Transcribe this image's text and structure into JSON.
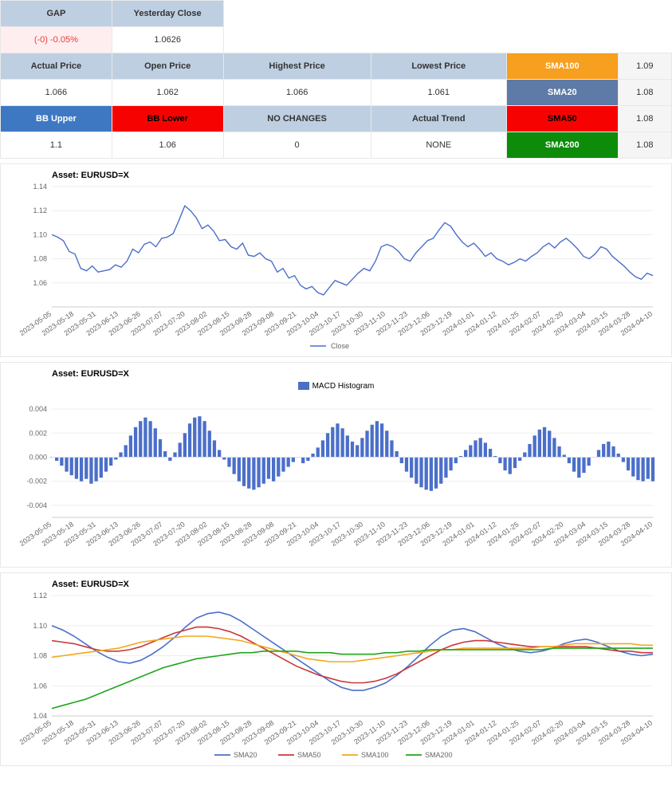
{
  "tables": {
    "row1_headers": [
      "GAP",
      "Yesterday Close"
    ],
    "row1_values": [
      "(-0) -0.05%",
      "1.0626"
    ],
    "row2_headers": [
      "Actual Price",
      "Open Price",
      "Highest Price",
      "Lowest Price",
      "SMA100",
      "1.09"
    ],
    "row2_values": [
      "1.066",
      "1.062",
      "1.066",
      "1.061",
      "SMA20",
      "1.08"
    ],
    "row3_headers": [
      "BB Upper",
      "BB Lower",
      "NO CHANGES",
      "Actual Trend",
      "SMA50",
      "1.08"
    ],
    "row3_values": [
      "1.1",
      "1.06",
      "0",
      "NONE",
      "SMA200",
      "1.08"
    ]
  },
  "colors": {
    "header_blue": "#becfe2",
    "orange": "#f79f1e",
    "blue2": "#5e7aa7",
    "red": "#f60301",
    "green": "#0d8c0a",
    "blue_strong": "#3e78c2",
    "pink_bg": "#ffeef0",
    "pink_text": "#ea3a3a",
    "close_line": "#4b6fc9",
    "macd_bar": "#4b6fc9",
    "sma20": "#4b6fc9",
    "sma50": "#ca3838",
    "sma100": "#f2a81e",
    "sma200": "#21a41c",
    "grid": "#eeeeee",
    "axis": "#cccccc",
    "text": "#666666"
  },
  "chart_meta": {
    "asset_title": "Asset: EURUSD=X",
    "x_dates": [
      "2023-05-05",
      "2023-05-18",
      "2023-05-31",
      "2023-06-13",
      "2023-06-26",
      "2023-07-07",
      "2023-07-20",
      "2023-08-02",
      "2023-08-15",
      "2023-08-28",
      "2023-09-08",
      "2023-09-21",
      "2023-10-04",
      "2023-10-17",
      "2023-10-30",
      "2023-11-10",
      "2023-11-23",
      "2023-12-06",
      "2023-12-19",
      "2024-01-01",
      "2024-01-12",
      "2024-01-25",
      "2024-02-07",
      "2024-02-20",
      "2024-03-04",
      "2024-03-15",
      "2024-03-28",
      "2024-04-10"
    ],
    "close_chart": {
      "legend": "Close",
      "ylim": [
        1.04,
        1.14
      ],
      "yticks": [
        1.06,
        1.08,
        1.1,
        1.12,
        1.14
      ],
      "series": [
        1.1,
        1.098,
        1.095,
        1.086,
        1.084,
        1.072,
        1.07,
        1.074,
        1.069,
        1.07,
        1.071,
        1.075,
        1.073,
        1.078,
        1.088,
        1.085,
        1.092,
        1.094,
        1.09,
        1.097,
        1.098,
        1.101,
        1.112,
        1.124,
        1.12,
        1.114,
        1.105,
        1.108,
        1.103,
        1.095,
        1.096,
        1.09,
        1.088,
        1.093,
        1.083,
        1.082,
        1.085,
        1.08,
        1.078,
        1.069,
        1.072,
        1.064,
        1.066,
        1.058,
        1.055,
        1.057,
        1.052,
        1.05,
        1.056,
        1.062,
        1.06,
        1.058,
        1.063,
        1.068,
        1.072,
        1.07,
        1.078,
        1.09,
        1.092,
        1.09,
        1.086,
        1.08,
        1.078,
        1.085,
        1.09,
        1.095,
        1.097,
        1.104,
        1.11,
        1.107,
        1.1,
        1.094,
        1.09,
        1.093,
        1.088,
        1.082,
        1.085,
        1.08,
        1.078,
        1.075,
        1.077,
        1.08,
        1.078,
        1.082,
        1.085,
        1.09,
        1.093,
        1.089,
        1.094,
        1.097,
        1.093,
        1.088,
        1.082,
        1.08,
        1.084,
        1.09,
        1.088,
        1.082,
        1.078,
        1.074,
        1.069,
        1.065,
        1.063,
        1.068,
        1.066
      ]
    },
    "macd_chart": {
      "legend": "MACD Histogram",
      "ylim": [
        -0.005,
        0.005
      ],
      "yticks": [
        -0.004,
        -0.002,
        0.0,
        0.002,
        0.004
      ],
      "bars": [
        0.0,
        -0.0003,
        -0.0007,
        -0.0012,
        -0.0015,
        -0.0018,
        -0.002,
        -0.0018,
        -0.0022,
        -0.002,
        -0.0017,
        -0.0012,
        -0.0007,
        -0.0002,
        0.0004,
        0.001,
        0.0018,
        0.0025,
        0.003,
        0.0033,
        0.003,
        0.0024,
        0.0015,
        0.0005,
        -0.0003,
        0.0004,
        0.0012,
        0.002,
        0.0028,
        0.0033,
        0.0034,
        0.003,
        0.0022,
        0.0014,
        0.0006,
        -0.0002,
        -0.0008,
        -0.0014,
        -0.002,
        -0.0024,
        -0.0026,
        -0.0027,
        -0.0025,
        -0.0022,
        -0.0018,
        -0.002,
        -0.0016,
        -0.0012,
        -0.0008,
        -0.0004,
        0.0,
        -0.0005,
        -0.0003,
        0.0003,
        0.0008,
        0.0014,
        0.002,
        0.0025,
        0.0028,
        0.0024,
        0.0018,
        0.0013,
        0.001,
        0.0016,
        0.0022,
        0.0027,
        0.003,
        0.0028,
        0.0022,
        0.0014,
        0.0005,
        -0.0005,
        -0.0012,
        -0.0017,
        -0.0022,
        -0.0025,
        -0.0027,
        -0.0028,
        -0.0026,
        -0.0022,
        -0.0017,
        -0.0011,
        -0.0005,
        0.0001,
        0.0006,
        0.001,
        0.0014,
        0.0016,
        0.0012,
        0.0007,
        0.0001,
        -0.0005,
        -0.0011,
        -0.0014,
        -0.0009,
        -0.0003,
        0.0004,
        0.0011,
        0.0018,
        0.0023,
        0.0025,
        0.0022,
        0.0016,
        0.0009,
        0.0002,
        -0.0005,
        -0.0012,
        -0.0017,
        -0.0013,
        -0.0007,
        0.0,
        0.0006,
        0.0011,
        0.0013,
        0.0009,
        0.0003,
        -0.0004,
        -0.0011,
        -0.0016,
        -0.0019,
        -0.002,
        -0.0018,
        -0.002
      ]
    },
    "sma_chart": {
      "legend": [
        "SMA20",
        "SMA50",
        "SMA100",
        "SMA200"
      ],
      "ylim": [
        1.04,
        1.12
      ],
      "yticks": [
        1.04,
        1.06,
        1.08,
        1.1,
        1.12
      ],
      "sma20": [
        1.1,
        1.097,
        1.093,
        1.088,
        1.083,
        1.079,
        1.076,
        1.075,
        1.077,
        1.081,
        1.086,
        1.092,
        1.099,
        1.105,
        1.108,
        1.109,
        1.107,
        1.103,
        1.098,
        1.093,
        1.088,
        1.083,
        1.078,
        1.073,
        1.068,
        1.063,
        1.059,
        1.057,
        1.057,
        1.059,
        1.062,
        1.067,
        1.073,
        1.08,
        1.087,
        1.093,
        1.097,
        1.098,
        1.096,
        1.092,
        1.088,
        1.085,
        1.083,
        1.082,
        1.083,
        1.085,
        1.088,
        1.09,
        1.091,
        1.089,
        1.086,
        1.083,
        1.081,
        1.08,
        1.081
      ],
      "sma50": [
        1.09,
        1.089,
        1.088,
        1.086,
        1.084,
        1.083,
        1.083,
        1.084,
        1.086,
        1.089,
        1.092,
        1.095,
        1.097,
        1.099,
        1.099,
        1.098,
        1.096,
        1.093,
        1.089,
        1.085,
        1.081,
        1.077,
        1.073,
        1.07,
        1.067,
        1.065,
        1.063,
        1.062,
        1.062,
        1.063,
        1.065,
        1.068,
        1.072,
        1.076,
        1.08,
        1.084,
        1.087,
        1.089,
        1.09,
        1.09,
        1.089,
        1.088,
        1.087,
        1.086,
        1.086,
        1.086,
        1.086,
        1.086,
        1.086,
        1.085,
        1.084,
        1.083,
        1.083,
        1.082,
        1.082
      ],
      "sma100": [
        1.079,
        1.08,
        1.081,
        1.082,
        1.083,
        1.084,
        1.085,
        1.087,
        1.089,
        1.09,
        1.091,
        1.092,
        1.093,
        1.093,
        1.093,
        1.092,
        1.091,
        1.09,
        1.088,
        1.086,
        1.084,
        1.082,
        1.08,
        1.078,
        1.077,
        1.076,
        1.076,
        1.076,
        1.077,
        1.078,
        1.079,
        1.08,
        1.081,
        1.082,
        1.083,
        1.084,
        1.084,
        1.085,
        1.085,
        1.085,
        1.085,
        1.085,
        1.085,
        1.085,
        1.086,
        1.086,
        1.087,
        1.088,
        1.088,
        1.088,
        1.088,
        1.088,
        1.088,
        1.087,
        1.087
      ],
      "sma200": [
        1.045,
        1.047,
        1.049,
        1.051,
        1.054,
        1.057,
        1.06,
        1.063,
        1.066,
        1.069,
        1.072,
        1.074,
        1.076,
        1.078,
        1.079,
        1.08,
        1.081,
        1.082,
        1.082,
        1.083,
        1.083,
        1.083,
        1.083,
        1.082,
        1.082,
        1.082,
        1.081,
        1.081,
        1.081,
        1.081,
        1.082,
        1.082,
        1.083,
        1.083,
        1.084,
        1.084,
        1.084,
        1.084,
        1.084,
        1.084,
        1.084,
        1.084,
        1.084,
        1.084,
        1.084,
        1.085,
        1.085,
        1.085,
        1.085,
        1.085,
        1.085,
        1.085,
        1.085,
        1.085,
        1.085
      ]
    }
  }
}
